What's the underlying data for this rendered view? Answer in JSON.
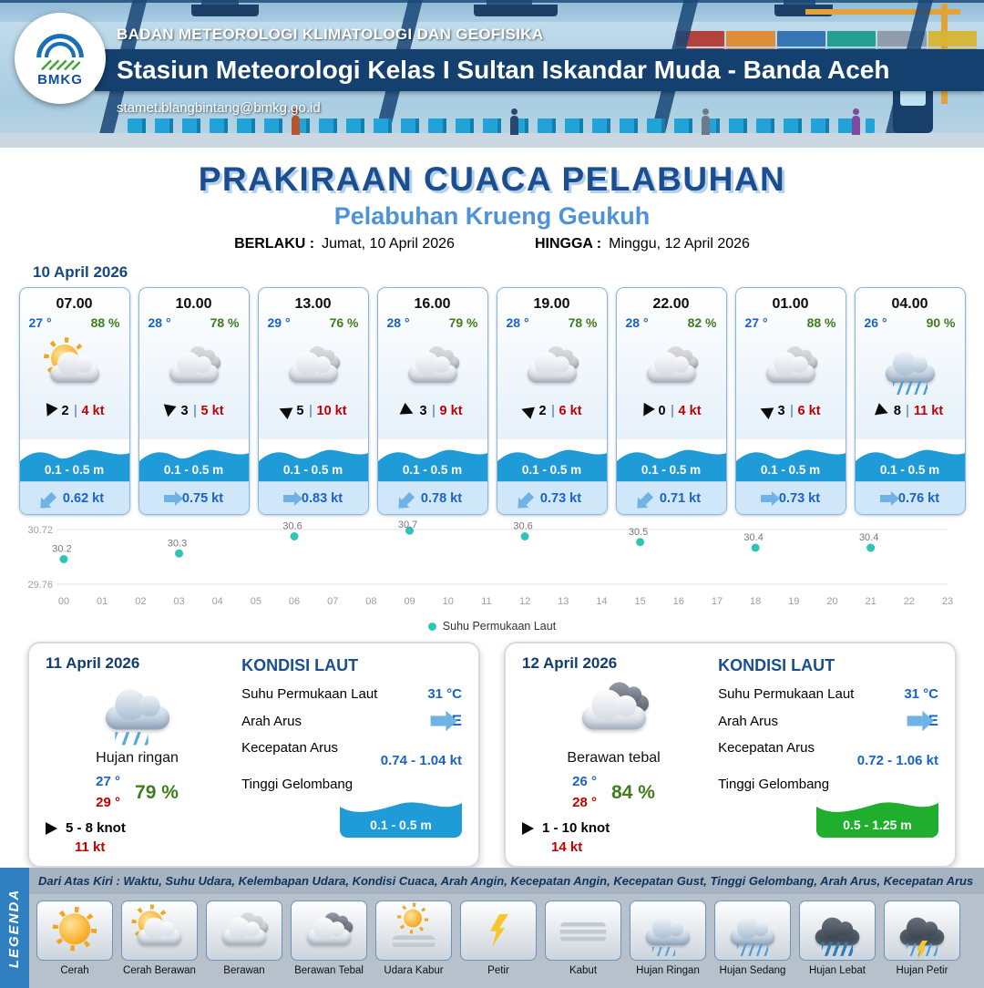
{
  "header": {
    "logo_label": "BMKG",
    "agency": "BADAN METEOROLOGI KLIMATOLOGI DAN GEOFISIKA",
    "station": "Stasiun Meteorologi Kelas I Sultan Iskandar Muda - Banda Aceh",
    "email": "stamet.blangbintang@bmkg.go.id"
  },
  "title": {
    "main": "PRAKIRAAN CUACA PELABUHAN",
    "subtitle": "Pelabuhan Krueng Geukuh",
    "valid_from_label": "BERLAKU :",
    "valid_from": "Jumat, 10 April 2026",
    "valid_to_label": "HINGGA :",
    "valid_to": "Minggu, 12 April 2026"
  },
  "colors": {
    "accent_blue": "#1c4e8f",
    "subtitle_blue": "#4e93d9",
    "temp_blue": "#1a63c4",
    "humidity_green": "#3f7d1f",
    "alert_red": "#c00000",
    "wave_blue": "#1f9cd8",
    "wave_green": "#1fae2e",
    "sst_dot": "#2ec4b6"
  },
  "day1": {
    "date": "10 April 2026",
    "cards": [
      {
        "time": "07.00",
        "temp": "27 °",
        "rh": "88 %",
        "icon": "cerah-berawan",
        "gust": "2",
        "wind": "4 kt",
        "wind_rot": 115,
        "wave": "0.1 - 0.5 m",
        "current": "0.62 kt",
        "cur_rot": 135
      },
      {
        "time": "10.00",
        "temp": "28 °",
        "rh": "78 %",
        "icon": "berawan",
        "gust": "3",
        "wind": "5 kt",
        "wind_rot": 100,
        "wave": "0.1 - 0.5 m",
        "current": "0.75 kt",
        "cur_rot": 0
      },
      {
        "time": "13.00",
        "temp": "29 °",
        "rh": "76 %",
        "icon": "berawan",
        "gust": "5",
        "wind": "10 kt",
        "wind_rot": 205,
        "wave": "0.1 - 0.5 m",
        "current": "0.83 kt",
        "cur_rot": 0
      },
      {
        "time": "16.00",
        "temp": "28 °",
        "rh": "79 %",
        "icon": "berawan",
        "gust": "3",
        "wind": "9 kt",
        "wind_rot": 25,
        "wave": "0.1 - 0.5 m",
        "current": "0.78 kt",
        "cur_rot": 135
      },
      {
        "time": "19.00",
        "temp": "28 °",
        "rh": "78 %",
        "icon": "berawan",
        "gust": "2",
        "wind": "6 kt",
        "wind_rot": 200,
        "wave": "0.1 - 0.5 m",
        "current": "0.73 kt",
        "cur_rot": 135
      },
      {
        "time": "22.00",
        "temp": "28 °",
        "rh": "82 %",
        "icon": "berawan",
        "gust": "0",
        "wind": "4 kt",
        "wind_rot": 120,
        "wave": "0.1 - 0.5 m",
        "current": "0.71 kt",
        "cur_rot": 135
      },
      {
        "time": "01.00",
        "temp": "27 °",
        "rh": "88 %",
        "icon": "berawan",
        "gust": "3",
        "wind": "6 kt",
        "wind_rot": 205,
        "wave": "0.1 - 0.5 m",
        "current": "0.73 kt",
        "cur_rot": 0
      },
      {
        "time": "04.00",
        "temp": "26 °",
        "rh": "90 %",
        "icon": "hujan-sedang",
        "gust": "8",
        "wind": "11 kt",
        "wind_rot": 20,
        "wave": "0.1 - 0.5 m",
        "current": "0.76 kt",
        "cur_rot": 0
      }
    ]
  },
  "chart_data": {
    "type": "scatter",
    "series_name": "Suhu Permukaan Laut",
    "x": [
      0,
      3,
      6,
      9,
      12,
      15,
      18,
      21
    ],
    "values": [
      30.2,
      30.3,
      30.6,
      30.7,
      30.6,
      30.5,
      30.4,
      30.4
    ],
    "x_ticks": [
      "00",
      "01",
      "02",
      "03",
      "04",
      "05",
      "06",
      "07",
      "08",
      "09",
      "10",
      "11",
      "12",
      "13",
      "14",
      "15",
      "16",
      "17",
      "18",
      "19",
      "20",
      "21",
      "22",
      "23"
    ],
    "ylim": [
      29.76,
      30.72
    ],
    "y_ticks": [
      "30.72",
      "29.76"
    ],
    "dot_color": "#2ec4b6",
    "grid": true,
    "legend_position": "bottom"
  },
  "sea_labels": {
    "heading": "KONDISI LAUT",
    "sst": "Suhu Permukaan Laut",
    "dir": "Arah Arus",
    "speed": "Kecepatan Arus",
    "wave": "Tinggi Gelombang"
  },
  "day2": {
    "date": "11 April 2026",
    "icon": "hujan-ringan",
    "condition": "Hujan ringan",
    "temp_min": "27 °",
    "temp_max": "29 °",
    "rh": "79 %",
    "wind_range": "5  - 8 knot",
    "gust": "11 kt",
    "sea": {
      "sst": "31 °C",
      "current_dir": "E",
      "current_speed": "0.74  - 1.04 kt",
      "wave": "0.1 - 0.5 m",
      "wave_color": "#1f9cd8"
    }
  },
  "day3": {
    "date": "12 April 2026",
    "icon": "berawan-tebal",
    "condition": "Berawan tebal",
    "temp_min": "26 °",
    "temp_max": "28 °",
    "rh": "84 %",
    "wind_range": "1  - 10 knot",
    "gust": "14 kt",
    "sea": {
      "sst": "31 °C",
      "current_dir": "E",
      "current_speed": "0.72  - 1.06 kt",
      "wave": "0.5 - 1.25 m",
      "wave_color": "#1fae2e"
    }
  },
  "legend": {
    "vertical_label": "LEGENDA",
    "description": "Dari Atas Kiri : Waktu, Suhu Udara, Kelembapan Udara, Kondisi Cuaca, Arah Angin, Kecepatan Angin, Kecepatan Gust, Tinggi Gelombang, Arah Arus, Kecepatan Arus",
    "items": [
      {
        "label": "Cerah",
        "icon": "cerah"
      },
      {
        "label": "Cerah Berawan",
        "icon": "cerah-berawan"
      },
      {
        "label": "Berawan",
        "icon": "berawan"
      },
      {
        "label": "Berawan Tebal",
        "icon": "berawan-tebal"
      },
      {
        "label": "Udara Kabur",
        "icon": "udara-kabur"
      },
      {
        "label": "Petir",
        "icon": "petir"
      },
      {
        "label": "Kabut",
        "icon": "kabut"
      },
      {
        "label": "Hujan Ringan",
        "icon": "hujan-ringan"
      },
      {
        "label": "Hujan Sedang",
        "icon": "hujan-sedang"
      },
      {
        "label": "Hujan Lebat",
        "icon": "hujan-lebat"
      },
      {
        "label": "Hujan Petir",
        "icon": "hujan-petir"
      }
    ]
  }
}
